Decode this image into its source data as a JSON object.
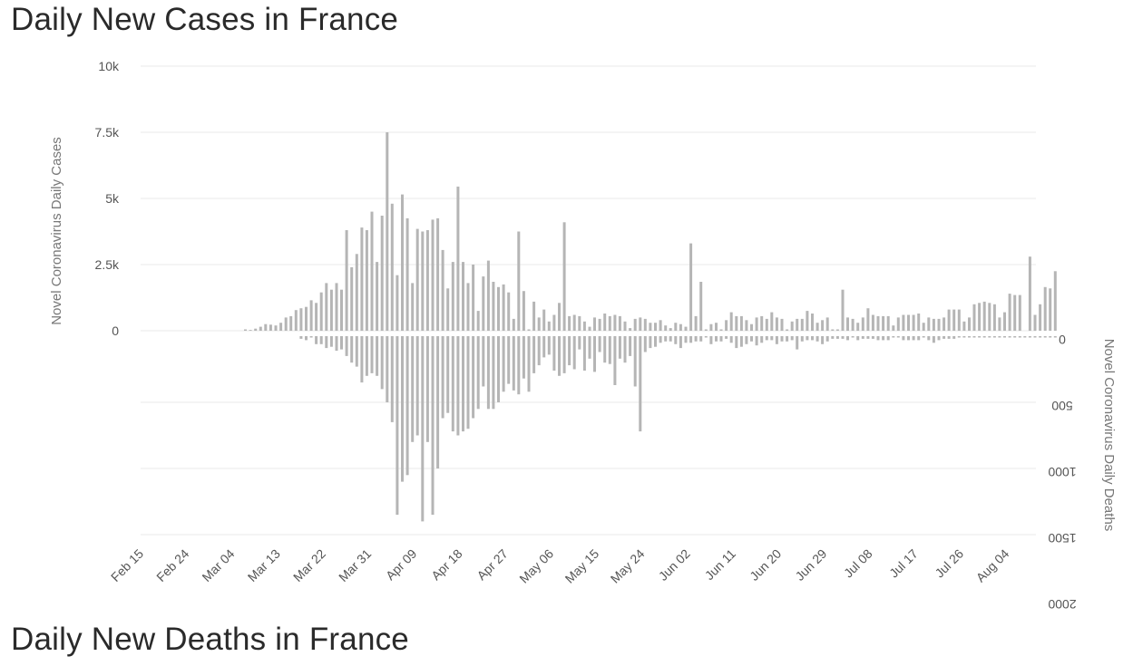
{
  "page": {
    "title": "Daily New Cases in France",
    "next_title": "Daily New Deaths in France"
  },
  "chart_data": {
    "type": "bar",
    "title": "Daily New Cases in France",
    "ylabel": "Novel Coronavirus Daily Cases",
    "y2label": "Novel Coronavirus Daily Deaths",
    "ylim": [
      0,
      10000
    ],
    "y2lim": [
      0,
      2000
    ],
    "y2_reversed": true,
    "grid": true,
    "colors": {
      "cases": "#b5b5b5",
      "deaths": "#b5b5b5",
      "grid": "#e9e9e9"
    },
    "x_tick_labels": [
      "Feb 15",
      "Feb 24",
      "Mar 04",
      "Mar 13",
      "Mar 22",
      "Mar 31",
      "Apr 09",
      "Apr 18",
      "Apr 27",
      "May 06",
      "May 15",
      "May 24",
      "Jun 02",
      "Jun 11",
      "Jun 20",
      "Jun 29",
      "Jul 08",
      "Jul 17",
      "Jul 26",
      "Aug 04"
    ],
    "y_tick_labels": [
      "0",
      "2.5k",
      "5k",
      "7.5k",
      "10k"
    ],
    "y_ticks": [
      0,
      2500,
      5000,
      7500,
      10000
    ],
    "y2_tick_labels": [
      "0",
      "500",
      "1000",
      "1500",
      "2000"
    ],
    "y2_ticks": [
      0,
      500,
      1000,
      1500,
      2000
    ],
    "x_start_date": "Feb 15",
    "series": [
      {
        "name": "Novel Coronavirus Daily Cases",
        "values": [
          0,
          0,
          0,
          0,
          0,
          0,
          0,
          0,
          0,
          0,
          0,
          0,
          0,
          0,
          0,
          0,
          0,
          0,
          0,
          50,
          30,
          80,
          150,
          250,
          230,
          200,
          300,
          500,
          550,
          780,
          850,
          900,
          1150,
          1050,
          1450,
          1800,
          1550,
          1800,
          1550,
          3800,
          2400,
          2900,
          3900,
          3800,
          4500,
          2600,
          4350,
          7500,
          4800,
          2100,
          5150,
          4250,
          1800,
          3850,
          3750,
          3800,
          4200,
          4250,
          3050,
          1600,
          2600,
          5450,
          2600,
          1800,
          2500,
          750,
          2050,
          2650,
          1850,
          1650,
          1750,
          1450,
          450,
          3750,
          1500,
          50,
          1100,
          500,
          800,
          350,
          600,
          1050,
          4100,
          550,
          600,
          550,
          350,
          150,
          500,
          450,
          650,
          550,
          600,
          550,
          350,
          100,
          450,
          500,
          450,
          300,
          300,
          400,
          200,
          100,
          300,
          250,
          150,
          3300,
          550,
          1850,
          50,
          250,
          300,
          50,
          400,
          700,
          550,
          550,
          400,
          250,
          500,
          550,
          450,
          700,
          500,
          450,
          50,
          350,
          450,
          450,
          750,
          650,
          300,
          400,
          500,
          50,
          50,
          1550,
          500,
          450,
          300,
          500,
          850,
          600,
          550,
          550,
          550,
          200,
          500,
          600,
          600,
          600,
          650,
          300,
          500,
          450,
          450,
          500,
          800,
          800,
          800,
          350,
          500,
          1000,
          1050,
          1100,
          1050,
          1000,
          500,
          700,
          1400,
          1350,
          1350,
          0,
          2800,
          600,
          1000,
          1650,
          1600,
          2250
        ]
      },
      {
        "name": "Novel Coronavirus Daily Deaths",
        "values": [
          0,
          0,
          0,
          0,
          0,
          0,
          0,
          0,
          0,
          0,
          0,
          0,
          0,
          0,
          0,
          0,
          0,
          0,
          0,
          0,
          0,
          0,
          0,
          0,
          0,
          0,
          0,
          0,
          0,
          0,
          20,
          30,
          10,
          60,
          60,
          90,
          80,
          110,
          100,
          150,
          200,
          230,
          350,
          300,
          280,
          300,
          400,
          500,
          650,
          1350,
          1100,
          1050,
          800,
          750,
          1400,
          800,
          1350,
          1000,
          620,
          580,
          720,
          750,
          720,
          700,
          620,
          550,
          380,
          550,
          550,
          500,
          420,
          360,
          410,
          440,
          320,
          420,
          280,
          220,
          160,
          140,
          260,
          300,
          280,
          220,
          250,
          100,
          260,
          170,
          270,
          120,
          200,
          210,
          370,
          170,
          200,
          150,
          380,
          720,
          120,
          90,
          80,
          50,
          40,
          40,
          60,
          90,
          50,
          50,
          40,
          40,
          10,
          60,
          40,
          40,
          20,
          50,
          90,
          80,
          60,
          40,
          70,
          50,
          30,
          30,
          60,
          40,
          40,
          30,
          100,
          40,
          30,
          30,
          40,
          60,
          40,
          20,
          20,
          20,
          30,
          10,
          30,
          20,
          20,
          20,
          30,
          30,
          30,
          10,
          10,
          30,
          30,
          30,
          30,
          10,
          30,
          50,
          30,
          20,
          20,
          20,
          10,
          10,
          10,
          10,
          10,
          10,
          10,
          10,
          10,
          10,
          10,
          10,
          10,
          10,
          10,
          10,
          10,
          10,
          10,
          10
        ]
      }
    ]
  }
}
